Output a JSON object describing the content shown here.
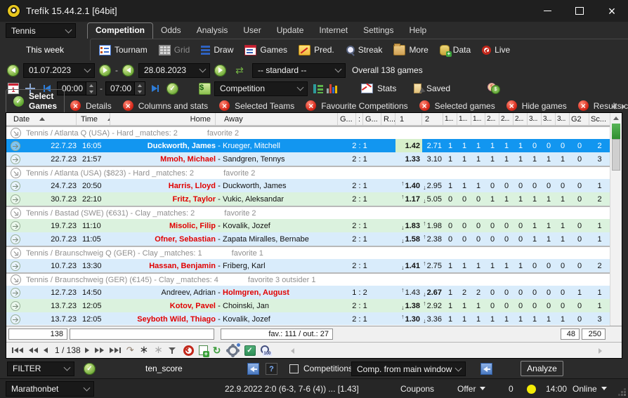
{
  "window": {
    "title": "Trefík 15.44.2.1 [64bit]",
    "controls": [
      "minimize",
      "maximize",
      "close"
    ]
  },
  "menu": {
    "sport_value": "Tennis",
    "active": "Competition",
    "items": [
      "Competition",
      "Odds",
      "Analysis",
      "User",
      "Update",
      "Internet",
      "Settings",
      "Help"
    ]
  },
  "toolbar": {
    "period": "This week",
    "buttons": [
      {
        "label": "Tournam",
        "icon": "tournaments",
        "disabled": false
      },
      {
        "label": "Grid",
        "icon": "grid",
        "disabled": true
      },
      {
        "label": "Draw",
        "icon": "draw",
        "disabled": false
      },
      {
        "label": "Games",
        "icon": "games",
        "disabled": false
      },
      {
        "label": "Pred.",
        "icon": "predictions",
        "disabled": false
      },
      {
        "label": "Streak",
        "icon": "streak",
        "disabled": false
      },
      {
        "label": "More",
        "icon": "more",
        "disabled": false
      },
      {
        "label": "Data",
        "icon": "data",
        "disabled": false
      },
      {
        "label": "Live",
        "icon": "live",
        "disabled": false
      }
    ]
  },
  "filters": {
    "date_from": "01.07.2023",
    "date_to": "28.08.2023",
    "preset_value": "-- standard --",
    "overall_label": "Overall 138 games",
    "time_from": "00:00",
    "time_to": "07:00",
    "view_value": "Competition",
    "stats_label": "Stats",
    "saved_label": "Saved"
  },
  "tabs": [
    {
      "label": "Select Games",
      "active": true
    },
    {
      "label": "Details",
      "active": false
    },
    {
      "label": "Columns and stats",
      "active": false
    },
    {
      "label": "Selected Teams",
      "active": false
    },
    {
      "label": "Favourite Competitions",
      "active": false
    },
    {
      "label": "Selected games",
      "active": false
    },
    {
      "label": "Hide games",
      "active": false
    },
    {
      "label": "Results c",
      "active": false
    }
  ],
  "table": {
    "columns": [
      "Date",
      "Time",
      "Home",
      "Away",
      "G...",
      ":",
      "G...",
      "R...",
      "1",
      "2",
      "1...",
      "1...",
      "1...",
      "2...",
      "2...",
      "2...",
      "3...",
      "3...",
      "3...",
      "G2",
      "Sc..."
    ],
    "rows": [
      {
        "type": "group",
        "title": "Tennis / Atlanta Q (USA)  - Hard _matches: 2",
        "note": "favorite 2"
      },
      {
        "type": "game",
        "tone": "sel",
        "date": "22.7.23",
        "time": "16:05",
        "home": "Duckworth, James",
        "home_red": false,
        "home_bold": true,
        "away": "Krueger, Mitchell",
        "away_red": false,
        "away_bold": false,
        "score": "2 : 1",
        "o1": "1.42",
        "o1_dir": "",
        "o1_bold": true,
        "o1_marked": true,
        "o2": "2.71",
        "o2_dir": "",
        "o2_bold": false,
        "ind": [
          "1",
          "1",
          "1",
          "1",
          "1",
          "1",
          "0",
          "0",
          "0"
        ],
        "g2": "0",
        "sc": "2"
      },
      {
        "type": "game",
        "tone": "blue",
        "date": "22.7.23",
        "time": "21:57",
        "home": "Mmoh, Michael",
        "home_red": true,
        "home_bold": true,
        "away": "Sandgren, Tennys",
        "away_red": false,
        "away_bold": false,
        "score": "2 : 1",
        "o1": "1.33",
        "o1_dir": "",
        "o1_bold": true,
        "o1_marked": false,
        "o2": "3.10",
        "o2_dir": "",
        "o2_bold": false,
        "ind": [
          "1",
          "1",
          "1",
          "1",
          "1",
          "1",
          "1",
          "1",
          "1"
        ],
        "g2": "0",
        "sc": "3"
      },
      {
        "type": "group",
        "title": "Tennis / Atlanta (USA)  ($823) - Hard _matches: 2",
        "note": "favorite 2"
      },
      {
        "type": "game",
        "tone": "blue",
        "date": "24.7.23",
        "time": "20:50",
        "home": "Harris, Lloyd",
        "home_red": true,
        "home_bold": true,
        "away": "Duckworth, James",
        "away_red": false,
        "away_bold": false,
        "score": "2 : 1",
        "o1": "1.40",
        "o1_dir": "up",
        "o1_bold": true,
        "o1_marked": false,
        "o2": "2.95",
        "o2_dir": "down",
        "o2_bold": false,
        "ind": [
          "1",
          "1",
          "1",
          "0",
          "0",
          "0",
          "0",
          "0",
          "0"
        ],
        "g2": "0",
        "sc": "1"
      },
      {
        "type": "game",
        "tone": "green",
        "date": "30.7.23",
        "time": "22:10",
        "home": "Fritz, Taylor",
        "home_red": true,
        "home_bold": true,
        "away": "Vukic, Aleksandar",
        "away_red": false,
        "away_bold": false,
        "score": "2 : 1",
        "o1": "1.17",
        "o1_dir": "up",
        "o1_bold": true,
        "o1_marked": false,
        "o2": "5.05",
        "o2_dir": "down",
        "o2_bold": false,
        "ind": [
          "0",
          "0",
          "0",
          "1",
          "1",
          "1",
          "1",
          "1",
          "1"
        ],
        "g2": "0",
        "sc": "2"
      },
      {
        "type": "group",
        "title": "Tennis / Bastad (SWE)  (€631) - Clay _matches: 2",
        "note": "favorite 2"
      },
      {
        "type": "game",
        "tone": "green",
        "date": "19.7.23",
        "time": "11:10",
        "home": "Misolic, Filip",
        "home_red": true,
        "home_bold": true,
        "away": "Kovalik, Jozef",
        "away_red": false,
        "away_bold": false,
        "score": "2 : 1",
        "o1": "1.83",
        "o1_dir": "down",
        "o1_bold": true,
        "o1_marked": false,
        "o2": "1.98",
        "o2_dir": "up",
        "o2_bold": false,
        "ind": [
          "0",
          "0",
          "0",
          "0",
          "0",
          "0",
          "1",
          "1",
          "1"
        ],
        "g2": "0",
        "sc": "1"
      },
      {
        "type": "game",
        "tone": "blue",
        "date": "20.7.23",
        "time": "11:05",
        "home": "Ofner, Sebastian",
        "home_red": true,
        "home_bold": true,
        "away": "Zapata Miralles, Bernabe",
        "away_red": false,
        "away_bold": false,
        "score": "2 : 1",
        "o1": "1.58",
        "o1_dir": "down",
        "o1_bold": true,
        "o1_marked": false,
        "o2": "2.38",
        "o2_dir": "up",
        "o2_bold": false,
        "ind": [
          "0",
          "0",
          "0",
          "0",
          "0",
          "0",
          "1",
          "1",
          "1"
        ],
        "g2": "0",
        "sc": "1"
      },
      {
        "type": "group",
        "title": "Tennis / Braunschweig Q (GER)  - Clay _matches: 1",
        "note": "favorite 1"
      },
      {
        "type": "game",
        "tone": "blue",
        "date": "10.7.23",
        "time": "13:30",
        "home": "Hassan, Benjamin",
        "home_red": true,
        "home_bold": true,
        "away": "Friberg, Karl",
        "away_red": false,
        "away_bold": false,
        "score": "2 : 1",
        "o1": "1.41",
        "o1_dir": "down",
        "o1_bold": true,
        "o1_marked": false,
        "o2": "2.75",
        "o2_dir": "up",
        "o2_bold": false,
        "ind": [
          "1",
          "1",
          "1",
          "1",
          "1",
          "1",
          "0",
          "0",
          "0"
        ],
        "g2": "0",
        "sc": "2"
      },
      {
        "type": "group",
        "title": "Tennis / Braunschweig (GER)  (€145) - Clay _matches: 4",
        "note": "favorite 3  outsider 1"
      },
      {
        "type": "game",
        "tone": "blue",
        "date": "12.7.23",
        "time": "14:50",
        "home": "Andreev, Adrian",
        "home_red": false,
        "home_bold": false,
        "away": "Holmgren, August",
        "away_red": true,
        "away_bold": true,
        "score": "1 : 2",
        "o1": "1.43",
        "o1_dir": "up",
        "o1_bold": false,
        "o1_marked": false,
        "o2": "2.67",
        "o2_dir": "down",
        "o2_bold": true,
        "ind": [
          "1",
          "2",
          "2",
          "0",
          "0",
          "0",
          "0",
          "0",
          "0"
        ],
        "g2": "1",
        "sc": "1"
      },
      {
        "type": "game",
        "tone": "green",
        "date": "13.7.23",
        "time": "12:05",
        "home": "Kotov, Pavel",
        "home_red": true,
        "home_bold": true,
        "away": "Choinski, Jan",
        "away_red": false,
        "away_bold": false,
        "score": "2 : 1",
        "o1": "1.38",
        "o1_dir": "down",
        "o1_bold": true,
        "o1_marked": false,
        "o2": "2.92",
        "o2_dir": "up",
        "o2_bold": false,
        "ind": [
          "1",
          "1",
          "1",
          "0",
          "0",
          "0",
          "0",
          "0",
          "0"
        ],
        "g2": "0",
        "sc": "1"
      },
      {
        "type": "game",
        "tone": "blue",
        "date": "13.7.23",
        "time": "12:05",
        "home": "Seyboth Wild, Thiago",
        "home_red": true,
        "home_bold": true,
        "away": "Kovalik, Jozef",
        "away_red": false,
        "away_bold": false,
        "score": "2 : 1",
        "o1": "1.30",
        "o1_dir": "up",
        "o1_bold": true,
        "o1_marked": false,
        "o2": "3.36",
        "o2_dir": "down",
        "o2_bold": false,
        "ind": [
          "1",
          "1",
          "1",
          "1",
          "1",
          "1",
          "1",
          "1",
          "1"
        ],
        "g2": "0",
        "sc": "3"
      }
    ],
    "footer": {
      "count": "138",
      "middle": "",
      "fav_out": "fav.: 111 / out.: 27",
      "page_rows": "48",
      "page_max": "250"
    },
    "pager": {
      "position": "1 / 138"
    }
  },
  "filter_bar": {
    "label": "FILTER",
    "script_name": "ten_score",
    "competitions_label": "Competitions:",
    "competitions_value": "Comp. from main window",
    "analyze_label": "Analyze"
  },
  "status_bar": {
    "bookmaker": "Marathonbet",
    "last_result": "22.9.2022 2:0 (6-3, 7-6 (4)) ... [1.43]",
    "coupons_label": "Coupons",
    "offer_label": "Offer",
    "counter": "0",
    "time": "14:00",
    "online_label": "Online"
  },
  "colors": {
    "selected_row": "#1296f0",
    "row_blue": "#d9ecfb",
    "row_green": "#dbf2de",
    "odds_mark": "#d6efca",
    "favorite_red": "#e10000",
    "accent_green": "#6fb33f"
  }
}
